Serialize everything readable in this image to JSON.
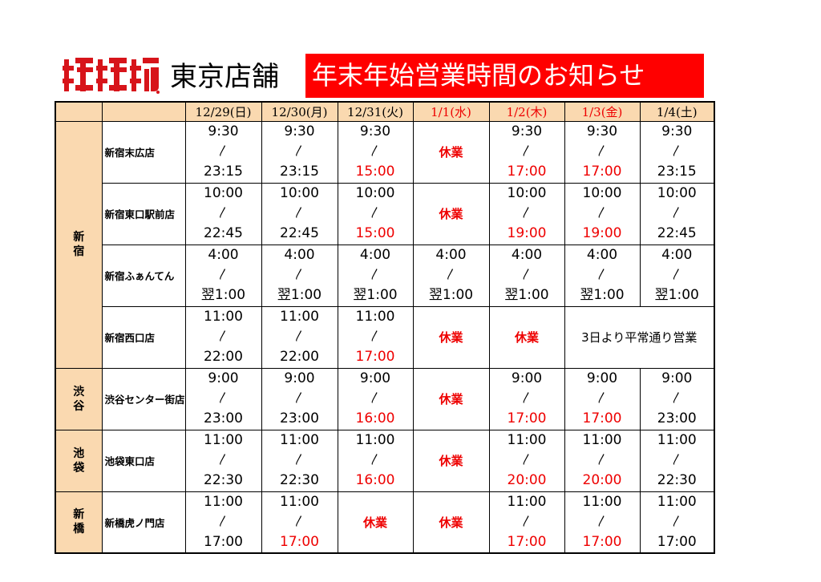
{
  "header": {
    "store_name": "東京店舗",
    "banner_text": "年末年始営業時間のお知らせ",
    "banner_color": "#ff0000",
    "logo_icon": "brand-logo-icon"
  },
  "table": {
    "corner_labels": [
      "",
      ""
    ],
    "dates": [
      "12/29(日)",
      "12/30(月)",
      "12/31(火)",
      "1/1(水)",
      "1/2(木)",
      "1/3(金)",
      "1/4(土)"
    ],
    "date_red": [
      false,
      false,
      false,
      true,
      true,
      true,
      false
    ],
    "tilde": "〳",
    "closed_label": "休業",
    "regions": [
      {
        "name": "新宿",
        "stores": [
          {
            "name": "新宿末広店",
            "days": [
              {
                "open": "9:30",
                "close": "23:15",
                "red": false
              },
              {
                "open": "9:30",
                "close": "23:15",
                "red": false
              },
              {
                "open": "9:30",
                "close": "15:00",
                "red": true
              },
              {
                "closed": true
              },
              {
                "open": "9:30",
                "close": "17:00",
                "red": true
              },
              {
                "open": "9:30",
                "close": "17:00",
                "red": true
              },
              {
                "open": "9:30",
                "close": "23:15",
                "red": false
              }
            ]
          },
          {
            "name": "新宿東口駅前店",
            "days": [
              {
                "open": "10:00",
                "close": "22:45",
                "red": false
              },
              {
                "open": "10:00",
                "close": "22:45",
                "red": false
              },
              {
                "open": "10:00",
                "close": "15:00",
                "red": true
              },
              {
                "closed": true
              },
              {
                "open": "10:00",
                "close": "19:00",
                "red": true
              },
              {
                "open": "10:00",
                "close": "19:00",
                "red": true
              },
              {
                "open": "10:00",
                "close": "22:45",
                "red": false
              }
            ]
          },
          {
            "name": "新宿ふぁんてん",
            "days": [
              {
                "open": "4:00",
                "close": "翌1:00",
                "red": false
              },
              {
                "open": "4:00",
                "close": "翌1:00",
                "red": false
              },
              {
                "open": "4:00",
                "close": "翌1:00",
                "red": false
              },
              {
                "open": "4:00",
                "close": "翌1:00",
                "red": false
              },
              {
                "open": "4:00",
                "close": "翌1:00",
                "red": false
              },
              {
                "open": "4:00",
                "close": "翌1:00",
                "red": false
              },
              {
                "open": "4:00",
                "close": "翌1:00",
                "red": false
              }
            ]
          },
          {
            "name": "新宿西口店",
            "days": [
              {
                "open": "11:00",
                "close": "22:00",
                "red": false
              },
              {
                "open": "11:00",
                "close": "22:00",
                "red": false
              },
              {
                "open": "11:00",
                "close": "17:00",
                "red": true
              },
              {
                "closed": true
              },
              {
                "closed": true
              }
            ],
            "note": "3日より平常通り営業"
          }
        ]
      },
      {
        "name": "渋谷",
        "stores": [
          {
            "name": "渋谷センター街店",
            "days": [
              {
                "open": "9:00",
                "close": "23:00",
                "red": false
              },
              {
                "open": "9:00",
                "close": "23:00",
                "red": false
              },
              {
                "open": "9:00",
                "close": "16:00",
                "red": true
              },
              {
                "closed": true
              },
              {
                "open": "9:00",
                "close": "17:00",
                "red": true
              },
              {
                "open": "9:00",
                "close": "17:00",
                "red": true
              },
              {
                "open": "9:00",
                "close": "23:00",
                "red": false
              }
            ]
          }
        ]
      },
      {
        "name": "池袋",
        "stores": [
          {
            "name": "池袋東口店",
            "days": [
              {
                "open": "11:00",
                "close": "22:30",
                "red": false
              },
              {
                "open": "11:00",
                "close": "22:30",
                "red": false
              },
              {
                "open": "11:00",
                "close": "16:00",
                "red": true
              },
              {
                "closed": true
              },
              {
                "open": "11:00",
                "close": "20:00",
                "red": true
              },
              {
                "open": "11:00",
                "close": "20:00",
                "red": true
              },
              {
                "open": "11:00",
                "close": "22:30",
                "red": false
              }
            ]
          }
        ]
      },
      {
        "name": "新橋",
        "stores": [
          {
            "name": "新橋虎ノ門店",
            "days": [
              {
                "open": "11:00",
                "close": "17:00",
                "red": false
              },
              {
                "open": "11:00",
                "close": "17:00",
                "red": true
              },
              {
                "closed": true
              },
              {
                "closed": true
              },
              {
                "open": "11:00",
                "close": "17:00",
                "red": true
              },
              {
                "open": "11:00",
                "close": "17:00",
                "red": true
              },
              {
                "open": "11:00",
                "close": "17:00",
                "red": false
              }
            ]
          }
        ]
      }
    ]
  }
}
